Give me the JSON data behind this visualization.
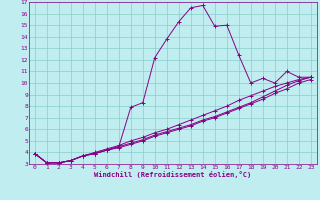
{
  "xlabel": "Windchill (Refroidissement éolien,°C)",
  "xlim": [
    -0.5,
    23.5
  ],
  "ylim": [
    3,
    17
  ],
  "xticks": [
    0,
    1,
    2,
    3,
    4,
    5,
    6,
    7,
    8,
    9,
    10,
    11,
    12,
    13,
    14,
    15,
    16,
    17,
    18,
    19,
    20,
    21,
    22,
    23
  ],
  "yticks": [
    3,
    4,
    5,
    6,
    7,
    8,
    9,
    10,
    11,
    12,
    13,
    14,
    15,
    16,
    17
  ],
  "bg_color": "#c0eef0",
  "line_color": "#880088",
  "grid_color": "#88cccc",
  "series": [
    {
      "x": [
        0,
        1,
        2,
        3,
        4,
        5,
        6,
        7,
        8,
        9,
        10,
        11,
        12,
        13,
        14,
        15,
        16,
        17,
        18,
        19,
        20,
        21,
        22,
        23
      ],
      "y": [
        3.9,
        3.1,
        3.1,
        3.3,
        3.7,
        3.9,
        4.2,
        4.5,
        7.9,
        8.3,
        12.2,
        13.8,
        15.3,
        16.5,
        16.7,
        14.9,
        15.0,
        12.4,
        10.0,
        10.4,
        10.0,
        11.0,
        10.5,
        10.5
      ]
    },
    {
      "x": [
        0,
        1,
        2,
        3,
        4,
        5,
        6,
        7,
        8,
        9,
        10,
        11,
        12,
        13,
        14,
        15,
        16,
        17,
        18,
        19,
        20,
        21,
        22,
        23
      ],
      "y": [
        3.9,
        3.1,
        3.1,
        3.3,
        3.7,
        4.0,
        4.3,
        4.6,
        5.0,
        5.3,
        5.7,
        6.0,
        6.4,
        6.8,
        7.2,
        7.6,
        8.0,
        8.5,
        8.9,
        9.3,
        9.7,
        10.0,
        10.3,
        10.5
      ]
    },
    {
      "x": [
        0,
        1,
        2,
        3,
        4,
        5,
        6,
        7,
        8,
        9,
        10,
        11,
        12,
        13,
        14,
        15,
        16,
        17,
        18,
        19,
        20,
        21,
        22,
        23
      ],
      "y": [
        3.9,
        3.1,
        3.1,
        3.3,
        3.7,
        3.9,
        4.2,
        4.4,
        4.7,
        5.0,
        5.4,
        5.7,
        6.0,
        6.3,
        6.7,
        7.0,
        7.4,
        7.8,
        8.2,
        8.6,
        9.1,
        9.5,
        10.0,
        10.3
      ]
    },
    {
      "x": [
        0,
        1,
        2,
        3,
        4,
        5,
        6,
        7,
        8,
        9,
        10,
        11,
        12,
        13,
        14,
        15,
        16,
        17,
        18,
        19,
        20,
        21,
        22,
        23
      ],
      "y": [
        3.9,
        3.1,
        3.1,
        3.3,
        3.7,
        3.9,
        4.2,
        4.5,
        4.8,
        5.1,
        5.5,
        5.8,
        6.1,
        6.4,
        6.8,
        7.1,
        7.5,
        7.9,
        8.3,
        8.8,
        9.3,
        9.8,
        10.2,
        10.5
      ]
    }
  ]
}
